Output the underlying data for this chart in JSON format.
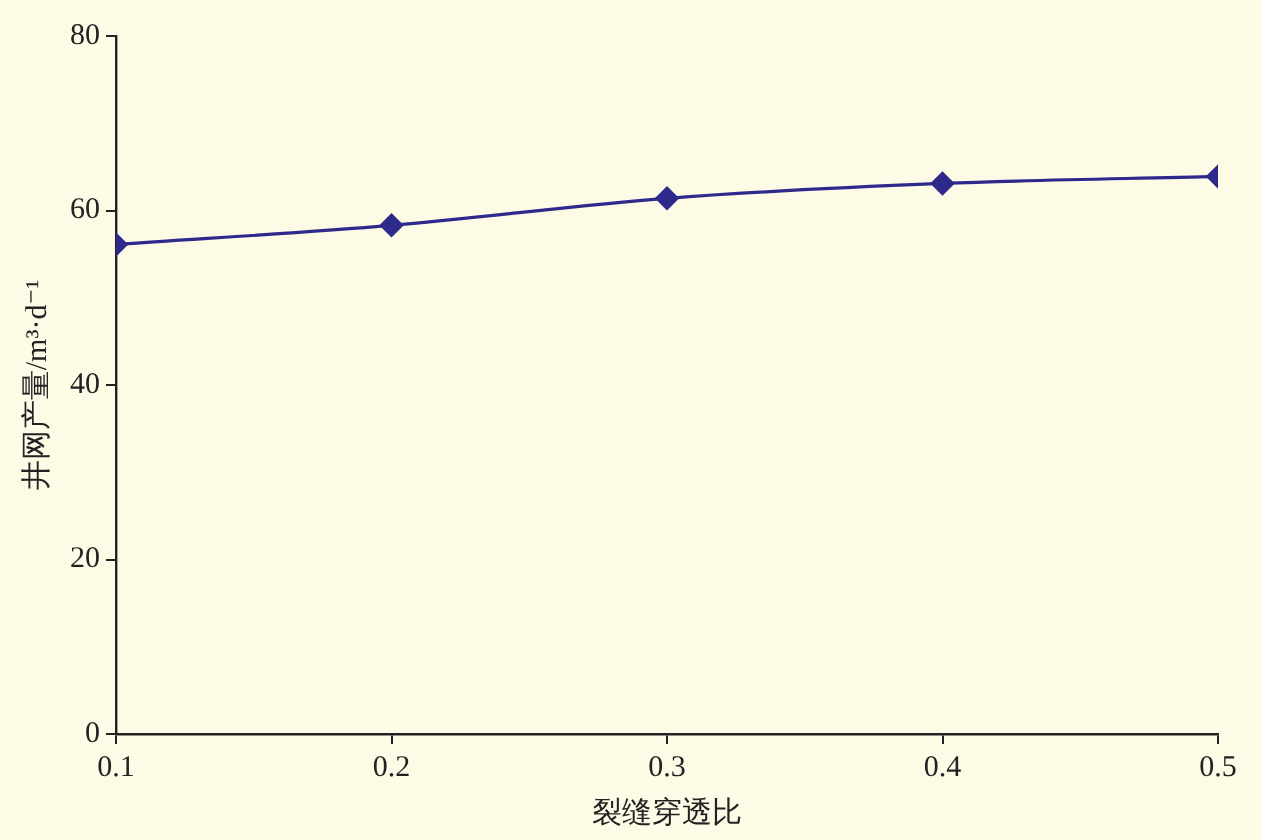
{
  "chart_data": {
    "type": "line",
    "xlabel": "裂缝穿透比",
    "ylabel": "井网产量/m³·d⁻¹",
    "x": [
      0.1,
      0.2,
      0.3,
      0.4,
      0.5
    ],
    "series": [
      {
        "color": "#2e2a8c",
        "values": [
          56.1,
          58.3,
          61.4,
          63.1,
          63.9
        ]
      }
    ],
    "xlim": [
      0.1,
      0.5
    ],
    "xticks": [
      0.1,
      0.2,
      0.3,
      0.4,
      0.5
    ],
    "ylim": [
      0,
      80
    ],
    "yticks": [
      0,
      20,
      40,
      60,
      80
    ],
    "grid": false,
    "legend": false,
    "marker": "diamond",
    "line_style": "solid"
  }
}
